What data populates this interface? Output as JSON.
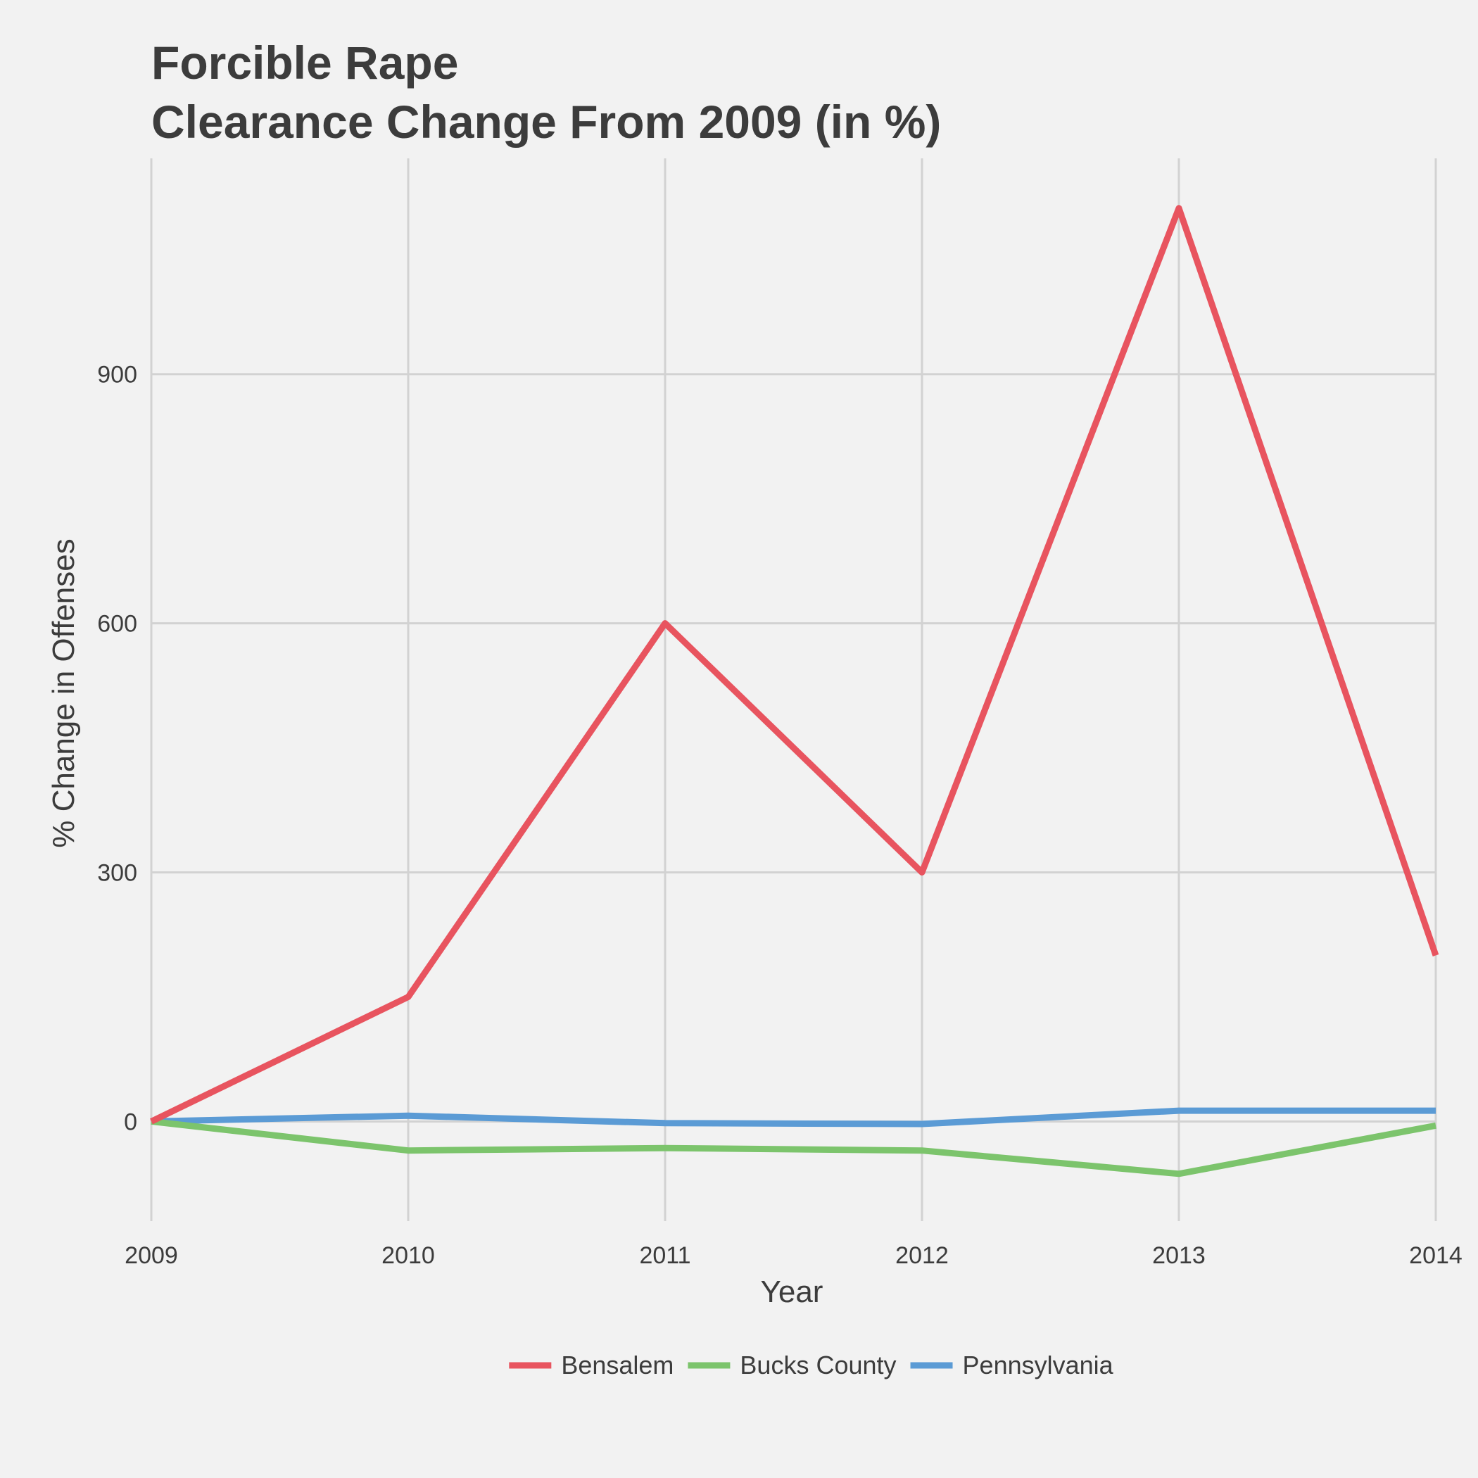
{
  "chart_data": {
    "type": "line",
    "title_lines": [
      "Forcible Rape",
      "Clearance Change From 2009 (in %)"
    ],
    "xlabel": "Year",
    "ylabel": "% Change in Offenses",
    "x": [
      2009,
      2010,
      2011,
      2012,
      2013,
      2014
    ],
    "x_ticks": [
      "2009",
      "2010",
      "2011",
      "2012",
      "2013",
      "2014"
    ],
    "y_ticks": [
      0,
      300,
      600,
      900
    ],
    "y_tick_labels": [
      "0",
      "300",
      "600",
      "900"
    ],
    "xlim": [
      2009,
      2014
    ],
    "ylim": [
      -120,
      1160
    ],
    "grid": true,
    "legend_position": "bottom",
    "series": [
      {
        "name": "Bensalem",
        "color": "#e8545f",
        "values": [
          0,
          150,
          600,
          300,
          1100,
          200
        ]
      },
      {
        "name": "Bucks County",
        "color": "#7cc46c",
        "values": [
          0,
          -35,
          -32,
          -35,
          -63,
          -5
        ]
      },
      {
        "name": "Pennsylvania",
        "color": "#5b9bd5",
        "values": [
          0,
          7,
          -2,
          -3,
          13,
          13
        ]
      }
    ]
  }
}
